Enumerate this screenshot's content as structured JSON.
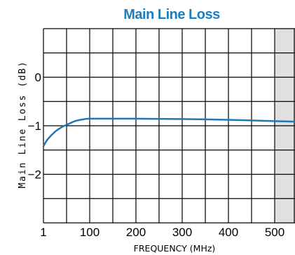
{
  "chart_data": {
    "type": "line",
    "title": "Main Line Loss",
    "xlabel": "FREQUENCY (MHz)",
    "ylabel": "Main Line Loss (dB)",
    "x_ticks": [
      {
        "label": "1",
        "value": 1
      },
      {
        "label": "100",
        "value": 100
      },
      {
        "label": "200",
        "value": 200
      },
      {
        "label": "300",
        "value": 300
      },
      {
        "label": "400",
        "value": 400
      },
      {
        "label": "500",
        "value": 500
      }
    ],
    "y_ticks": [
      {
        "label": "0",
        "value": 0
      },
      {
        "label": "−1",
        "value": -1
      },
      {
        "label": "−2",
        "value": -2
      }
    ],
    "xlim": [
      1,
      550
    ],
    "ylim": [
      -3,
      1
    ],
    "grid": true,
    "shaded_region": [
      500,
      550
    ],
    "series": [
      {
        "x": [
          1,
          10,
          25,
          40,
          55,
          70,
          85,
          100,
          150,
          200,
          250,
          300,
          350,
          400,
          450,
          500,
          550
        ],
        "y": [
          -1.42,
          -1.28,
          -1.13,
          -1.03,
          -0.96,
          -0.9,
          -0.87,
          -0.855,
          -0.855,
          -0.855,
          -0.858,
          -0.862,
          -0.868,
          -0.878,
          -0.89,
          -0.905,
          -0.915
        ]
      }
    ],
    "colors": {
      "title": "#1a7fc1",
      "line": "#1f78b4",
      "shade": "#e0e0e0",
      "grid": "#000000"
    }
  }
}
